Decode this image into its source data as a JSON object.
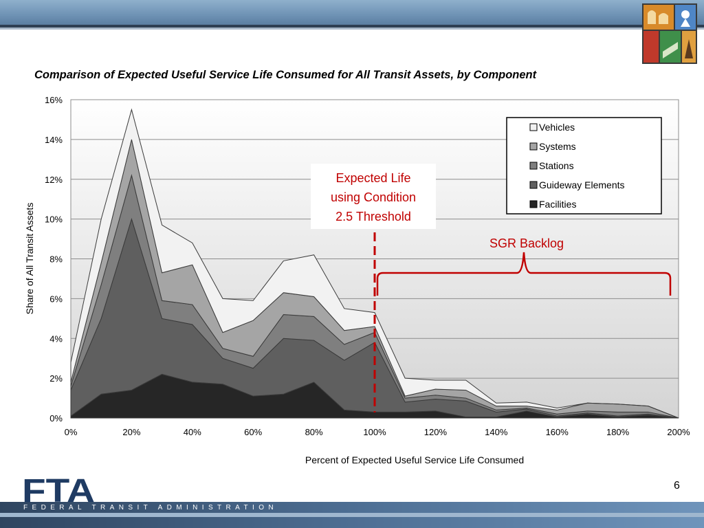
{
  "slide": {
    "title": "Comparison of Expected Useful Service Life Consumed for All Transit Assets, by Component",
    "page_number": "6",
    "agency_name": "FEDERAL TRANSIT ADMINISTRATION",
    "agency_logo_text": "FTA"
  },
  "chart_data": {
    "type": "area",
    "stacked": true,
    "title": "Comparison of Expected Useful Service Life Consumed for All Transit Assets, by Component",
    "xlabel": "Percent of Expected Useful Service Life Consumed",
    "ylabel": "Share of All Transit Assets",
    "x": [
      0,
      10,
      20,
      30,
      40,
      50,
      60,
      70,
      80,
      90,
      100,
      110,
      120,
      130,
      140,
      150,
      160,
      170,
      180,
      190,
      200
    ],
    "x_tick_labels": [
      "0%",
      "20%",
      "40%",
      "60%",
      "80%",
      "100%",
      "120%",
      "140%",
      "160%",
      "180%",
      "200%"
    ],
    "y_tick_labels": [
      "0%",
      "2%",
      "4%",
      "6%",
      "8%",
      "10%",
      "12%",
      "14%",
      "16%"
    ],
    "xlim": [
      0,
      200
    ],
    "ylim": [
      0,
      16
    ],
    "grid": "horizontal",
    "legend_position": "top-right",
    "series": [
      {
        "name": "Facilities",
        "color": "#262626",
        "values": [
          0.1,
          1.2,
          1.4,
          2.2,
          1.8,
          1.7,
          1.1,
          1.2,
          1.8,
          0.4,
          0.3,
          0.3,
          0.35,
          0.05,
          0.05,
          0.35,
          0.05,
          0.2,
          0.05,
          0.15,
          0.0
        ]
      },
      {
        "name": "Guideway Elements",
        "color": "#5f5f5f",
        "values": [
          1.3,
          3.8,
          8.6,
          2.8,
          2.9,
          1.3,
          1.4,
          2.8,
          2.1,
          2.5,
          3.5,
          0.5,
          0.6,
          0.8,
          0.25,
          0.1,
          0.05,
          0.05,
          0.05,
          0.05,
          0.0
        ]
      },
      {
        "name": "Stations",
        "color": "#7f7f7f",
        "values": [
          0.2,
          1.7,
          2.2,
          0.9,
          1.0,
          0.5,
          0.6,
          1.2,
          1.2,
          0.8,
          0.5,
          0.2,
          0.2,
          0.15,
          0.1,
          0.05,
          0.1,
          0.1,
          0.2,
          0.1,
          0.0
        ]
      },
      {
        "name": "Systems",
        "color": "#a5a5a5",
        "values": [
          0.2,
          1.1,
          1.8,
          1.4,
          2.0,
          0.8,
          1.8,
          1.1,
          1.0,
          0.7,
          0.3,
          0.1,
          0.3,
          0.4,
          0.2,
          0.1,
          0.2,
          0.4,
          0.4,
          0.3,
          0.0
        ]
      },
      {
        "name": "Vehicles",
        "color": "#f2f2f2",
        "values": [
          1.0,
          2.2,
          1.5,
          2.4,
          1.1,
          1.7,
          1.0,
          1.6,
          2.1,
          1.1,
          0.7,
          0.9,
          0.45,
          0.5,
          0.15,
          0.2,
          0.1,
          0.0,
          0.0,
          0.0,
          0.0
        ]
      }
    ],
    "annotations": [
      {
        "text": "Expected Life",
        "color": "#c00000"
      },
      {
        "text": "using Condition",
        "color": "#c00000"
      },
      {
        "text": "2.5 Threshold",
        "color": "#c00000"
      },
      {
        "text": "SGR Backlog",
        "color": "#c00000"
      }
    ],
    "threshold_x": 100,
    "backlog_range": [
      100,
      200
    ]
  }
}
